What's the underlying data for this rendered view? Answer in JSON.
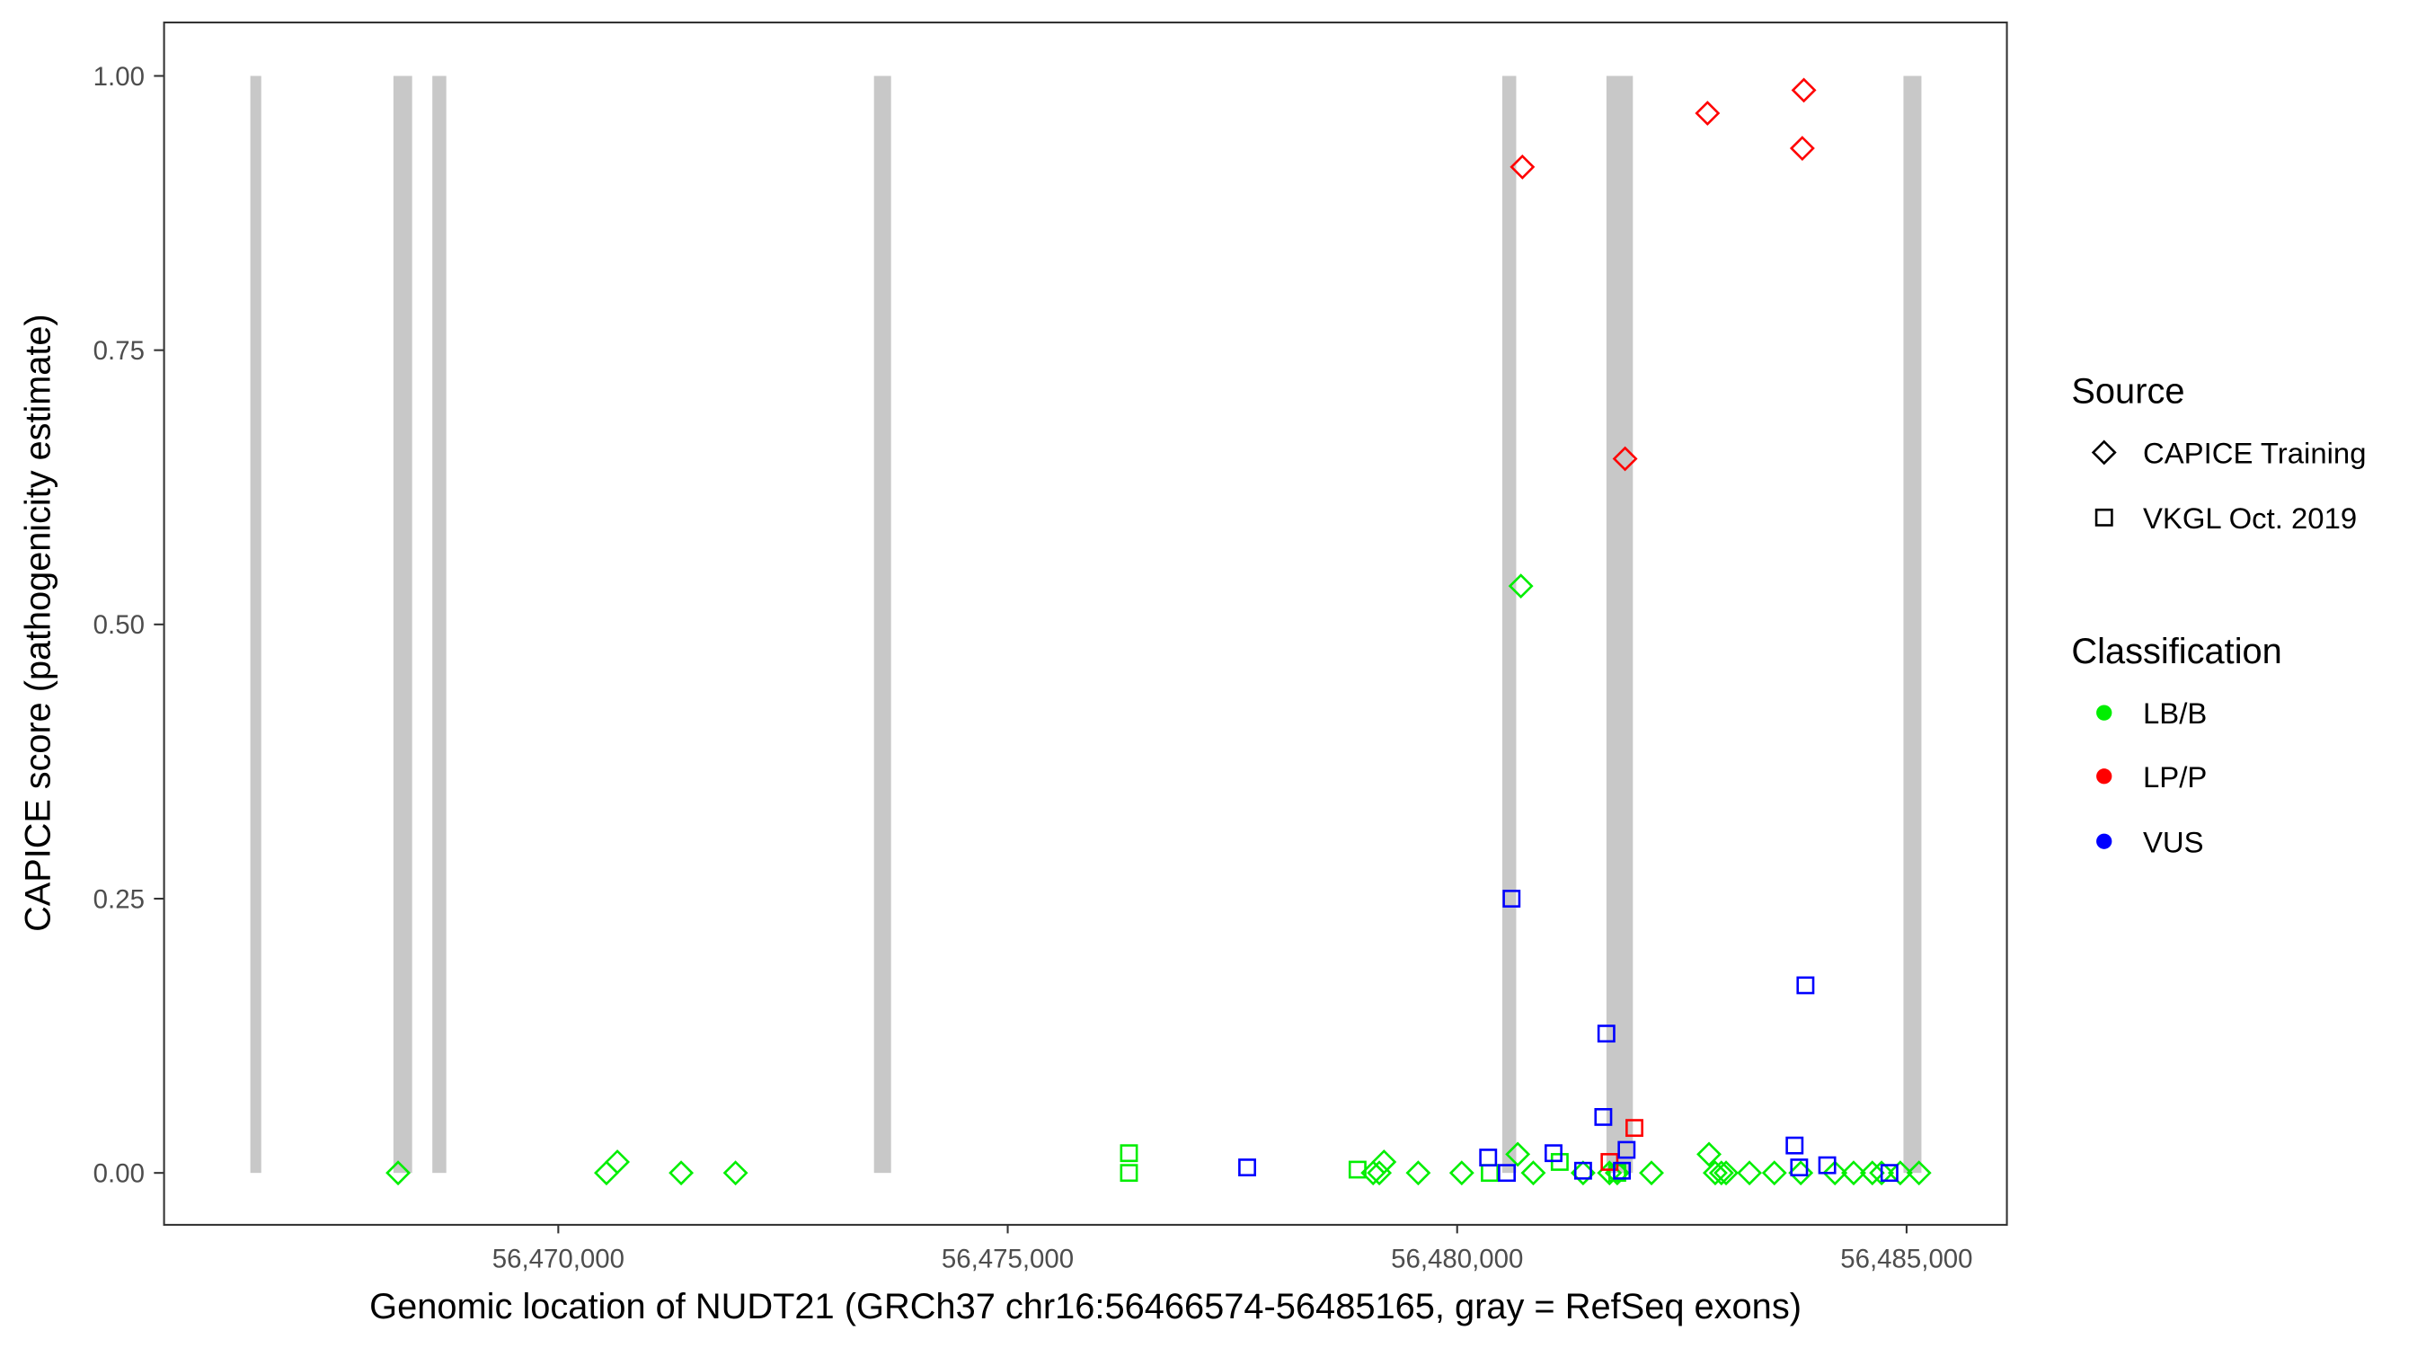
{
  "chart_data": {
    "type": "scatter",
    "xlabel": "Genomic location of NUDT21 (GRCh37 chr16:56466574-56485165, gray = RefSeq exons)",
    "ylabel": "CAPICE score (pathogenicity estimate)",
    "xlim": [
      56465000,
      56485700
    ],
    "ylim": [
      -0.05,
      1.05
    ],
    "x_ticks": [
      56470000,
      56475000,
      56480000,
      56485000
    ],
    "x_tick_labels": [
      "56,470,000",
      "56,475,000",
      "56,480,000",
      "56,485,000"
    ],
    "y_ticks": [
      0,
      0.25,
      0.5,
      0.75,
      1.0
    ],
    "y_tick_labels": [
      "0.00",
      "0.25",
      "0.50",
      "0.75",
      "1.00"
    ],
    "grid": false,
    "exon_color": "#c8c8c8",
    "exons": [
      [
        56466574,
        56466690
      ],
      [
        56468166,
        56468374
      ],
      [
        56468599,
        56468754
      ],
      [
        56473512,
        56473702
      ],
      [
        56480502,
        56480657
      ],
      [
        56481661,
        56481955
      ],
      [
        56484965,
        56485165
      ]
    ],
    "legend": {
      "placement": "right",
      "source": {
        "title": "Source",
        "items": [
          {
            "label": "CAPICE Training",
            "shape": "diamond"
          },
          {
            "label": "VKGL Oct. 2019",
            "shape": "square"
          }
        ]
      },
      "classification": {
        "title": "Classification",
        "items": [
          {
            "label": "LB/B",
            "color": "#00ee00"
          },
          {
            "label": "LP/P",
            "color": "#ff0000"
          },
          {
            "label": "VUS",
            "color": "#0000ff"
          }
        ]
      }
    },
    "points": [
      {
        "x": 56468218,
        "y": 0.0,
        "source": "CAPICE Training",
        "class": "LB/B"
      },
      {
        "x": 56470536,
        "y": 0.0,
        "source": "CAPICE Training",
        "class": "LB/B"
      },
      {
        "x": 56470657,
        "y": 0.01,
        "source": "CAPICE Training",
        "class": "LB/B"
      },
      {
        "x": 56471367,
        "y": 0.0,
        "source": "CAPICE Training",
        "class": "LB/B"
      },
      {
        "x": 56471972,
        "y": 0.0,
        "source": "CAPICE Training",
        "class": "LB/B"
      },
      {
        "x": 56479065,
        "y": 0.0,
        "source": "CAPICE Training",
        "class": "LB/B"
      },
      {
        "x": 56479134,
        "y": 0.0,
        "source": "CAPICE Training",
        "class": "LB/B"
      },
      {
        "x": 56479186,
        "y": 0.01,
        "source": "CAPICE Training",
        "class": "LB/B"
      },
      {
        "x": 56479567,
        "y": 0.0,
        "source": "CAPICE Training",
        "class": "LB/B"
      },
      {
        "x": 56480051,
        "y": 0.0,
        "source": "CAPICE Training",
        "class": "LB/B"
      },
      {
        "x": 56480674,
        "y": 0.017,
        "source": "CAPICE Training",
        "class": "LB/B"
      },
      {
        "x": 56480709,
        "y": 0.535,
        "source": "CAPICE Training",
        "class": "LB/B"
      },
      {
        "x": 56480847,
        "y": 0.0,
        "source": "CAPICE Training",
        "class": "LB/B"
      },
      {
        "x": 56481401,
        "y": 0.0,
        "source": "CAPICE Training",
        "class": "LB/B"
      },
      {
        "x": 56481695,
        "y": 0.0,
        "source": "CAPICE Training",
        "class": "LB/B"
      },
      {
        "x": 56481781,
        "y": 0.0,
        "source": "CAPICE Training",
        "class": "LB/B"
      },
      {
        "x": 56482162,
        "y": 0.0,
        "source": "CAPICE Training",
        "class": "LB/B"
      },
      {
        "x": 56482802,
        "y": 0.017,
        "source": "CAPICE Training",
        "class": "LB/B"
      },
      {
        "x": 56482871,
        "y": 0.0,
        "source": "CAPICE Training",
        "class": "LB/B"
      },
      {
        "x": 56482940,
        "y": 0.0,
        "source": "CAPICE Training",
        "class": "LB/B"
      },
      {
        "x": 56482992,
        "y": 0.0,
        "source": "CAPICE Training",
        "class": "LB/B"
      },
      {
        "x": 56483252,
        "y": 0.0,
        "source": "CAPICE Training",
        "class": "LB/B"
      },
      {
        "x": 56483529,
        "y": 0.0,
        "source": "CAPICE Training",
        "class": "LB/B"
      },
      {
        "x": 56483823,
        "y": 0.0,
        "source": "CAPICE Training",
        "class": "LB/B"
      },
      {
        "x": 56484203,
        "y": 0.0,
        "source": "CAPICE Training",
        "class": "LB/B"
      },
      {
        "x": 56484411,
        "y": 0.0,
        "source": "CAPICE Training",
        "class": "LB/B"
      },
      {
        "x": 56484619,
        "y": 0.0,
        "source": "CAPICE Training",
        "class": "LB/B"
      },
      {
        "x": 56484722,
        "y": 0.0,
        "source": "CAPICE Training",
        "class": "LB/B"
      },
      {
        "x": 56484930,
        "y": 0.0,
        "source": "CAPICE Training",
        "class": "LB/B"
      },
      {
        "x": 56485138,
        "y": 0.0,
        "source": "CAPICE Training",
        "class": "LB/B"
      },
      {
        "x": 56480726,
        "y": 0.917,
        "source": "CAPICE Training",
        "class": "LP/P"
      },
      {
        "x": 56481868,
        "y": 0.651,
        "source": "CAPICE Training",
        "class": "LP/P"
      },
      {
        "x": 56482785,
        "y": 0.966,
        "source": "CAPICE Training",
        "class": "LP/P"
      },
      {
        "x": 56483857,
        "y": 0.987,
        "source": "CAPICE Training",
        "class": "LP/P"
      },
      {
        "x": 56483840,
        "y": 0.934,
        "source": "CAPICE Training",
        "class": "LP/P"
      },
      {
        "x": 56476349,
        "y": 0.018,
        "source": "VKGL Oct. 2019",
        "class": "LB/B"
      },
      {
        "x": 56476349,
        "y": 0.0,
        "source": "VKGL Oct. 2019",
        "class": "LB/B"
      },
      {
        "x": 56478892,
        "y": 0.003,
        "source": "VKGL Oct. 2019",
        "class": "LB/B"
      },
      {
        "x": 56480363,
        "y": 0.0,
        "source": "VKGL Oct. 2019",
        "class": "LB/B"
      },
      {
        "x": 56481141,
        "y": 0.01,
        "source": "VKGL Oct. 2019",
        "class": "LB/B"
      },
      {
        "x": 56481781,
        "y": 0.0,
        "source": "VKGL Oct. 2019",
        "class": "LB/B"
      },
      {
        "x": 56481972,
        "y": 0.041,
        "source": "VKGL Oct. 2019",
        "class": "LP/P"
      },
      {
        "x": 56481695,
        "y": 0.01,
        "source": "VKGL Oct. 2019",
        "class": "LP/P"
      },
      {
        "x": 56480605,
        "y": 0.25,
        "source": "VKGL Oct. 2019",
        "class": "VUS"
      },
      {
        "x": 56477664,
        "y": 0.005,
        "source": "VKGL Oct. 2019",
        "class": "VUS"
      },
      {
        "x": 56480345,
        "y": 0.014,
        "source": "VKGL Oct. 2019",
        "class": "VUS"
      },
      {
        "x": 56480553,
        "y": 0.0,
        "source": "VKGL Oct. 2019",
        "class": "VUS"
      },
      {
        "x": 56481072,
        "y": 0.018,
        "source": "VKGL Oct. 2019",
        "class": "VUS"
      },
      {
        "x": 56481401,
        "y": 0.002,
        "source": "VKGL Oct. 2019",
        "class": "VUS"
      },
      {
        "x": 56481660,
        "y": 0.127,
        "source": "VKGL Oct. 2019",
        "class": "VUS"
      },
      {
        "x": 56481626,
        "y": 0.051,
        "source": "VKGL Oct. 2019",
        "class": "VUS"
      },
      {
        "x": 56481885,
        "y": 0.021,
        "source": "VKGL Oct. 2019",
        "class": "VUS"
      },
      {
        "x": 56481833,
        "y": 0.002,
        "source": "VKGL Oct. 2019",
        "class": "VUS"
      },
      {
        "x": 56483754,
        "y": 0.025,
        "source": "VKGL Oct. 2019",
        "class": "VUS"
      },
      {
        "x": 56483805,
        "y": 0.005,
        "source": "VKGL Oct. 2019",
        "class": "VUS"
      },
      {
        "x": 56484117,
        "y": 0.007,
        "source": "VKGL Oct. 2019",
        "class": "VUS"
      },
      {
        "x": 56484809,
        "y": 0.0,
        "source": "VKGL Oct. 2019",
        "class": "VUS"
      },
      {
        "x": 56483875,
        "y": 0.171,
        "source": "VKGL Oct. 2019",
        "class": "VUS"
      }
    ]
  }
}
